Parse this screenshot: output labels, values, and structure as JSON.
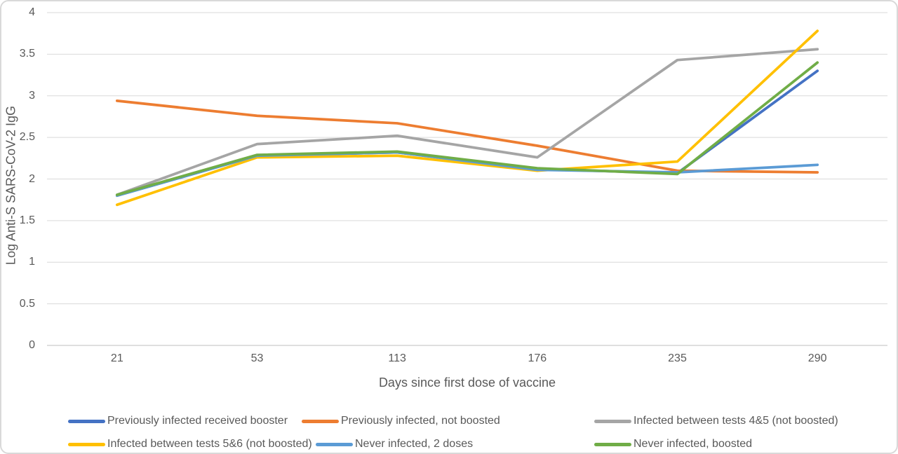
{
  "chart_data": {
    "type": "line",
    "title": "",
    "xlabel": "Days since first dose of vaccine",
    "ylabel": "Log Anti-S SARS-CoV-2 IgG",
    "categories": [
      21,
      53,
      113,
      176,
      235,
      290
    ],
    "ylim": [
      0,
      4
    ],
    "ytick_step": 0.5,
    "grid": true,
    "legend_position": "bottom",
    "series": [
      {
        "name": "Previously infected received booster",
        "color": "#4472C4",
        "values": [
          1.8,
          2.28,
          2.32,
          2.12,
          2.07,
          3.3
        ]
      },
      {
        "name": "Previously infected, not boosted",
        "color": "#ED7D31",
        "values": [
          2.94,
          2.76,
          2.67,
          2.4,
          2.1,
          2.08
        ]
      },
      {
        "name": "Infected between tests 4&5 (not boosted)",
        "color": "#A5A5A5",
        "values": [
          1.81,
          2.42,
          2.52,
          2.26,
          3.43,
          3.56
        ]
      },
      {
        "name": "Infected between tests 5&6 (not boosted)",
        "color": "#FFC000",
        "values": [
          1.69,
          2.26,
          2.28,
          2.1,
          2.21,
          3.78
        ]
      },
      {
        "name": "Never infected, 2 doses",
        "color": "#5B9BD5",
        "values": [
          1.8,
          2.28,
          2.32,
          2.11,
          2.08,
          2.17
        ]
      },
      {
        "name": "Never infected, boosted",
        "color": "#70AD47",
        "values": [
          1.81,
          2.29,
          2.33,
          2.13,
          2.06,
          3.4
        ]
      }
    ],
    "style_colors": {
      "gridline": "#d9d9d9",
      "axis_line": "#bfbfbf",
      "tick_text": "#595959"
    }
  }
}
